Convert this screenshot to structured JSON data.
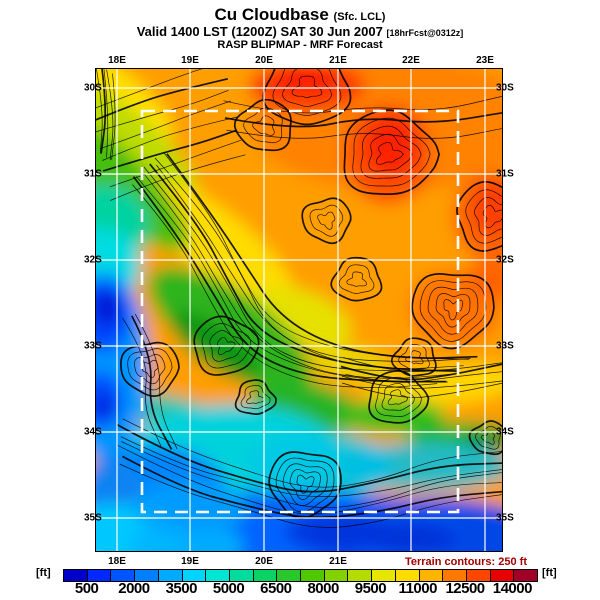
{
  "title": {
    "main": "Cu Cloudbase",
    "main_suffix": "(Sfc. LCL)",
    "valid": "Valid 1400 LST (1200Z) SAT 30 Jun 2007",
    "valid_suffix": "[18hrFcst@0312z]",
    "model": "RASP BLIPMAP - MRF Forecast"
  },
  "axes": {
    "top_labels": [
      "18E",
      "19E",
      "20E",
      "21E",
      "22E",
      "23E"
    ],
    "bottom_labels": [
      "18E",
      "19E",
      "20E",
      "21E"
    ],
    "lat_labels": [
      "30S",
      "31S",
      "32S",
      "33S",
      "34S",
      "35S"
    ]
  },
  "map": {
    "terrain_note": "Terrain contours: 250 ft",
    "terrain_note_color": "#a00000",
    "gridline_color": "#ffffff",
    "inner_domain_box_color": "#ffffff",
    "contour_color": "#000000"
  },
  "colorbar": {
    "unit_left": "[ft]",
    "unit_right": "[ft]",
    "labels": [
      "500",
      "2000",
      "3500",
      "5000",
      "6500",
      "8000",
      "9500",
      "11000",
      "12500",
      "14000"
    ],
    "colors": [
      "#0000c8",
      "#0028ff",
      "#0055ff",
      "#0080ff",
      "#00aaff",
      "#00d4ff",
      "#00e6d2",
      "#00dc9b",
      "#0ad264",
      "#28c82d",
      "#50c800",
      "#82d200",
      "#b4dc00",
      "#e6e600",
      "#ffdc00",
      "#ffb400",
      "#ff7800",
      "#ff4600",
      "#e60000",
      "#a00028"
    ]
  },
  "chart_data": {
    "type": "heatmap",
    "title": "Cu Cloudbase (Sfc. LCL)",
    "units": "ft",
    "scale_ticks": [
      500,
      2000,
      3500,
      5000,
      6500,
      8000,
      9500,
      11000,
      12500,
      14000
    ],
    "scale_step_per_color_band": 750,
    "x": [
      "18E",
      "19E",
      "20E",
      "21E",
      "22E",
      "23E"
    ],
    "y": [
      "30S",
      "31S",
      "32S",
      "33S",
      "34S",
      "35S"
    ],
    "values_estimated_ft": [
      [
        9000,
        11000,
        13000,
        11500,
        11000,
        10500
      ],
      [
        5000,
        8000,
        11000,
        12000,
        12500,
        11000
      ],
      [
        2500,
        6500,
        9500,
        11000,
        11000,
        11000
      ],
      [
        2000,
        6000,
        8500,
        7000,
        10500,
        9000
      ],
      [
        3500,
        4000,
        4000,
        4500,
        6000,
        4000
      ],
      [
        3800,
        2500,
        2200,
        2500,
        2500,
        2200
      ]
    ],
    "overlays": [
      "terrain contours every 250 ft (black)",
      "lat/lon grid (white)",
      "inner model domain (white dashed box)"
    ],
    "legend_position": "bottom"
  }
}
